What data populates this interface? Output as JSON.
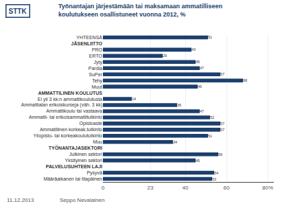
{
  "chart_data": {
    "type": "bar",
    "orientation": "horizontal",
    "title": "Työnantajan järjestämään tai maksamaan ammatilliseen",
    "subtitle": "koulutukseen osallistuneet vuonna 2012, %",
    "categories": [
      "YHTEENSÄ",
      "JÄSENLIITTO",
      "PRO",
      "ERTO",
      "Jyty",
      "Pardia",
      "SuPer",
      "Tehy",
      "Muut",
      "AMMATTILINEN KOULUTUS",
      "Ei yli 3 kk:n ammattikoulutusta",
      "Ammattialan erikoiskurseja (väh. 3 kk)",
      "Ammattikoulu tai vastaava",
      "Ammatti- tai erikoisammattitutkinto",
      "Opistoaste",
      "Ammatillinen korkeak.tutkinto",
      "Yliopisto- tai korkeakoulututkinto",
      "Muu",
      "TYÖNANTAJASEKTORI",
      "Julkinen sektori",
      "Yksityinen sektori",
      "PALVELUSUHTEEN LAJI",
      "Pysyvä",
      "Määräaikanen tai tilapäinen"
    ],
    "values": [
      51,
      null,
      43,
      29,
      45,
      47,
      57,
      68,
      46,
      null,
      14,
      36,
      47,
      52,
      57,
      57,
      51,
      34,
      null,
      56,
      45,
      null,
      54,
      53
    ],
    "color": "#1c3f6e",
    "xlim": [
      0,
      83
    ],
    "xticks": [
      0,
      23,
      40,
      60,
      {
        "value": 80,
        "label": "80%"
      }
    ],
    "grid": true,
    "data_labels": true,
    "annotations": [
      "STTK",
      "11.12.2013",
      "Seppo Nevalainen"
    ]
  }
}
